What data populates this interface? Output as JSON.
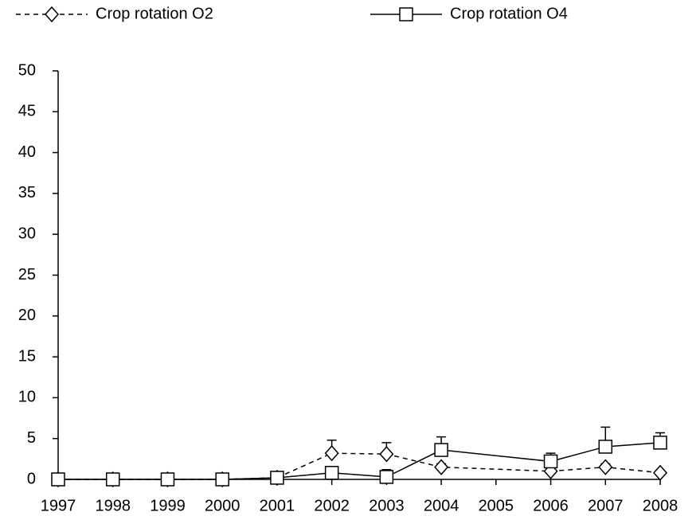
{
  "chart_data": {
    "type": "line",
    "x": [
      1997,
      1998,
      1999,
      2000,
      2001,
      2002,
      2003,
      2004,
      2006,
      2007,
      2008
    ],
    "series": [
      {
        "name": "Crop rotation O2",
        "color": "#000000",
        "line_style": "dashed",
        "marker": "diamond",
        "values": [
          0,
          0,
          0,
          0,
          0.2,
          3.2,
          3.1,
          1.5,
          1.0,
          1.5,
          0.8
        ],
        "errors": [
          0,
          0,
          0,
          0,
          0,
          1.6,
          1.4,
          0.4,
          0.3,
          0.4,
          0
        ]
      },
      {
        "name": "Crop rotation O4",
        "color": "#000000",
        "line_style": "solid",
        "marker": "square",
        "values": [
          0,
          0,
          0,
          0,
          0.2,
          0.8,
          0.3,
          3.6,
          2.2,
          4.0,
          4.5
        ],
        "errors": [
          0,
          0,
          0,
          0,
          0,
          0.6,
          0.9,
          1.6,
          1.0,
          2.4,
          1.2
        ]
      }
    ],
    "xlim": [
      1997,
      2008
    ],
    "xticks": [
      1997,
      1998,
      1999,
      2000,
      2001,
      2002,
      2003,
      2004,
      2005,
      2006,
      2007,
      2008
    ],
    "ylim": [
      0,
      50
    ],
    "yticks": [
      0,
      5,
      10,
      15,
      20,
      25,
      30,
      35,
      40,
      45,
      50
    ],
    "legend": "top"
  }
}
